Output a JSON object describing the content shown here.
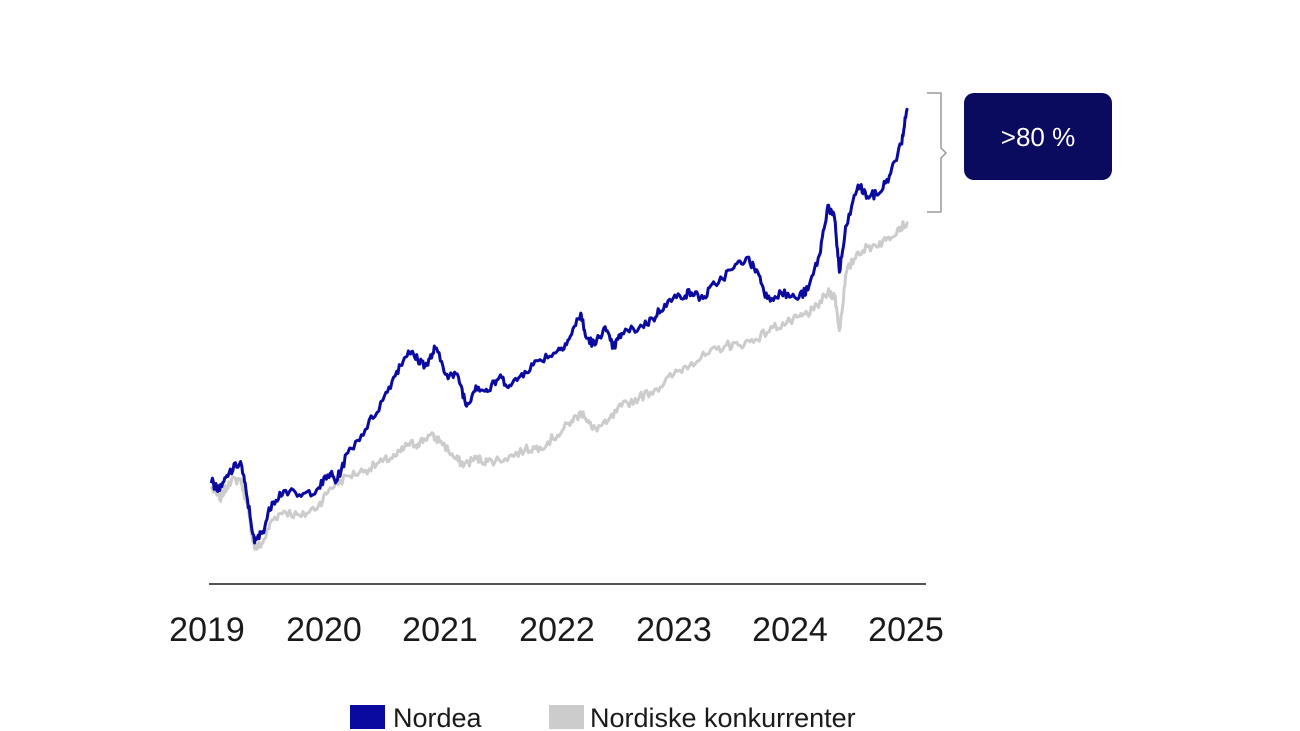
{
  "chart_data": {
    "type": "line",
    "x_ticks": [
      "2019",
      "2020",
      "2021",
      "2022",
      "2023",
      "2024",
      "2025"
    ],
    "xlim": [
      2019,
      2025
    ],
    "ylim": [
      -30,
      160
    ],
    "grid": false,
    "legend_position": "bottom-center",
    "colors": {
      "Nordea": "#0a0aa0",
      "Nordiske konkurrenter": "#cccccc",
      "callout": "#0a0a5e"
    },
    "series": [
      {
        "name": "Nordea",
        "points": [
          [
            2019.03,
            2
          ],
          [
            2019.1,
            -1
          ],
          [
            2019.18,
            5
          ],
          [
            2019.28,
            9
          ],
          [
            2019.33,
            -2
          ],
          [
            2019.4,
            -19
          ],
          [
            2019.47,
            -15
          ],
          [
            2019.55,
            -5
          ],
          [
            2019.65,
            -1
          ],
          [
            2019.8,
            -3
          ],
          [
            2019.95,
            0
          ],
          [
            2020.05,
            5
          ],
          [
            2020.1,
            2
          ],
          [
            2020.2,
            12
          ],
          [
            2020.35,
            20
          ],
          [
            2020.5,
            30
          ],
          [
            2020.62,
            40
          ],
          [
            2020.72,
            47
          ],
          [
            2020.8,
            44
          ],
          [
            2020.88,
            42
          ],
          [
            2020.95,
            48
          ],
          [
            2021.05,
            39
          ],
          [
            2021.15,
            38
          ],
          [
            2021.22,
            28
          ],
          [
            2021.3,
            35
          ],
          [
            2021.4,
            33
          ],
          [
            2021.5,
            38
          ],
          [
            2021.6,
            35
          ],
          [
            2021.72,
            40
          ],
          [
            2021.85,
            44
          ],
          [
            2022.0,
            47
          ],
          [
            2022.1,
            51
          ],
          [
            2022.2,
            60
          ],
          [
            2022.24,
            52
          ],
          [
            2022.32,
            49
          ],
          [
            2022.4,
            55
          ],
          [
            2022.48,
            48
          ],
          [
            2022.55,
            53
          ],
          [
            2022.7,
            55
          ],
          [
            2022.82,
            58
          ],
          [
            2022.92,
            63
          ],
          [
            2023.05,
            66
          ],
          [
            2023.15,
            67
          ],
          [
            2023.25,
            65
          ],
          [
            2023.35,
            70
          ],
          [
            2023.5,
            75
          ],
          [
            2023.62,
            79
          ],
          [
            2023.72,
            74
          ],
          [
            2023.8,
            65
          ],
          [
            2023.92,
            67
          ],
          [
            2024.05,
            65
          ],
          [
            2024.15,
            68
          ],
          [
            2024.25,
            80
          ],
          [
            2024.32,
            97
          ],
          [
            2024.38,
            92
          ],
          [
            2024.42,
            74
          ],
          [
            2024.48,
            90
          ],
          [
            2024.58,
            104
          ],
          [
            2024.66,
            100
          ],
          [
            2024.76,
            101
          ],
          [
            2024.86,
            108
          ],
          [
            2024.95,
            118
          ],
          [
            2025.0,
            130
          ]
        ]
      },
      {
        "name": "Nordiske konkurrenter",
        "points": [
          [
            2019.03,
            0
          ],
          [
            2019.1,
            -4
          ],
          [
            2019.18,
            2
          ],
          [
            2019.28,
            3
          ],
          [
            2019.33,
            -5
          ],
          [
            2019.4,
            -21
          ],
          [
            2019.47,
            -19
          ],
          [
            2019.55,
            -11
          ],
          [
            2019.65,
            -8
          ],
          [
            2019.8,
            -10
          ],
          [
            2019.95,
            -6
          ],
          [
            2020.05,
            0
          ],
          [
            2020.2,
            4
          ],
          [
            2020.35,
            6
          ],
          [
            2020.5,
            9
          ],
          [
            2020.62,
            11
          ],
          [
            2020.72,
            15
          ],
          [
            2020.8,
            15
          ],
          [
            2020.9,
            18
          ],
          [
            2021.0,
            16
          ],
          [
            2021.12,
            10
          ],
          [
            2021.2,
            8
          ],
          [
            2021.3,
            10
          ],
          [
            2021.4,
            9
          ],
          [
            2021.55,
            10
          ],
          [
            2021.72,
            13
          ],
          [
            2021.85,
            14
          ],
          [
            2022.0,
            18
          ],
          [
            2022.12,
            23
          ],
          [
            2022.22,
            26
          ],
          [
            2022.3,
            20
          ],
          [
            2022.42,
            22
          ],
          [
            2022.55,
            28
          ],
          [
            2022.7,
            31
          ],
          [
            2022.85,
            34
          ],
          [
            2023.0,
            39
          ],
          [
            2023.15,
            43
          ],
          [
            2023.3,
            46
          ],
          [
            2023.45,
            49
          ],
          [
            2023.55,
            49
          ],
          [
            2023.7,
            51
          ],
          [
            2023.85,
            55
          ],
          [
            2024.0,
            57
          ],
          [
            2024.1,
            59
          ],
          [
            2024.2,
            61
          ],
          [
            2024.32,
            67
          ],
          [
            2024.38,
            66
          ],
          [
            2024.42,
            54
          ],
          [
            2024.48,
            74
          ],
          [
            2024.58,
            81
          ],
          [
            2024.7,
            83
          ],
          [
            2024.82,
            85
          ],
          [
            2024.92,
            89
          ],
          [
            2025.0,
            91
          ]
        ]
      }
    ],
    "annotation": {
      "label": ">80 %",
      "between_series": [
        "Nordea",
        "Nordiske konkurrenter"
      ]
    }
  }
}
